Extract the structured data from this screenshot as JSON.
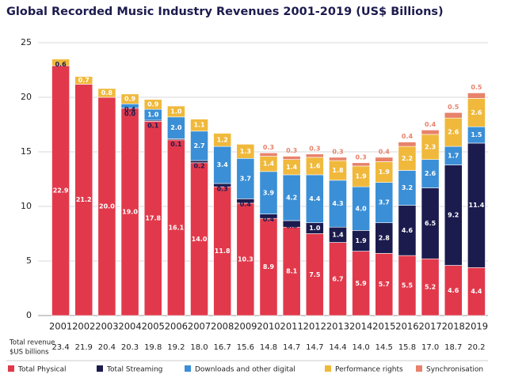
{
  "chart_data": {
    "type": "stacked_bar",
    "title": "Global Recorded Music Industry Revenues 2001-2019 (US$ Billions)",
    "categories": [
      "2001",
      "2002",
      "2003",
      "2004",
      "2005",
      "2006",
      "2007",
      "2008",
      "2009",
      "2010",
      "2011",
      "2012",
      "2013",
      "2014",
      "2015",
      "2016",
      "2017",
      "2018",
      "2019"
    ],
    "series": [
      {
        "name": "Total Physical",
        "color": "#e1394b",
        "values": [
          22.9,
          21.2,
          20.0,
          19.0,
          17.8,
          16.1,
          14.0,
          11.8,
          10.3,
          8.9,
          8.1,
          7.5,
          6.7,
          5.9,
          5.7,
          5.5,
          5.2,
          4.6,
          4.4
        ],
        "value_labels": [
          "22.9",
          "21.2",
          "20.0",
          "19.0",
          "17.8",
          "16.1",
          "14.0",
          "11.8",
          "10.3",
          "8.9",
          "8.1",
          "7.5",
          "6.7",
          "5.9",
          "5.7",
          "5.5",
          "5.2",
          "4.6",
          "4.4"
        ]
      },
      {
        "name": "Total Streaming",
        "color": "#1c1b4e",
        "values": [
          null,
          null,
          null,
          0.0,
          0.1,
          0.1,
          0.2,
          0.3,
          0.4,
          0.4,
          0.6,
          1.0,
          1.4,
          1.9,
          2.8,
          4.6,
          6.5,
          9.2,
          11.4
        ],
        "value_labels": [
          null,
          null,
          null,
          "0.0",
          "0.1",
          "0.1",
          "0.2",
          "0.3",
          "0.4",
          "0.4",
          "0.6",
          "1.0",
          "1.4",
          "1.9",
          "2.8",
          "4.6",
          "6.5",
          "9.2",
          "11.4"
        ]
      },
      {
        "name": "Downloads and other digital",
        "color": "#3b8fd6",
        "values": [
          null,
          null,
          null,
          0.4,
          1.0,
          2.0,
          2.7,
          3.4,
          3.7,
          3.9,
          4.2,
          4.4,
          4.3,
          4.0,
          3.7,
          3.2,
          2.6,
          1.7,
          1.5
        ],
        "value_labels": [
          null,
          null,
          null,
          "0.4",
          "1.0",
          "2.0",
          "2.7",
          "3.4",
          "3.7",
          "3.9",
          "4.2",
          "4.4",
          "4.3",
          "4.0",
          "3.7",
          "3.2",
          "2.6",
          "1.7",
          "1.5"
        ]
      },
      {
        "name": "Performance rights",
        "color": "#f0b93c",
        "values": [
          0.6,
          0.7,
          0.8,
          0.9,
          0.9,
          1.0,
          1.1,
          1.2,
          1.3,
          1.4,
          1.4,
          1.6,
          1.8,
          1.9,
          1.9,
          2.2,
          2.3,
          2.6,
          2.6
        ],
        "value_labels": [
          "0.6",
          "0.7",
          "0.8",
          "0.9",
          "0.9",
          "1.0",
          "1.1",
          "1.2",
          "1.3",
          "1.4",
          "1.4",
          "1.6",
          "1.8",
          "1.9",
          "1.9",
          "2.2",
          "2.3",
          "2.6",
          "2.6"
        ]
      },
      {
        "name": "Synchronisation",
        "color": "#e8826b",
        "values": [
          null,
          null,
          null,
          null,
          null,
          null,
          null,
          null,
          null,
          0.3,
          0.3,
          0.3,
          0.3,
          0.3,
          0.4,
          0.4,
          0.4,
          0.5,
          0.5
        ],
        "value_labels": [
          null,
          null,
          null,
          null,
          null,
          null,
          null,
          null,
          null,
          "0.3",
          "0.3",
          "0.3",
          "0.3",
          "0.3",
          "0.4",
          "0.4",
          "0.4",
          "0.5",
          "0.5"
        ]
      }
    ],
    "ylim": [
      0,
      25
    ],
    "yticks": [
      0,
      5,
      10,
      15,
      20,
      25
    ],
    "grid": true,
    "totals": {
      "label": [
        "Total revenue",
        "$US billions"
      ],
      "values": [
        23.4,
        21.9,
        20.4,
        20.3,
        19.8,
        19.2,
        18.0,
        16.7,
        15.6,
        14.8,
        14.7,
        14.7,
        14.4,
        14.0,
        14.5,
        15.8,
        17.0,
        18.7,
        20.2
      ],
      "value_labels": [
        null,
        null,
        null,
        null,
        null,
        null,
        "18.0",
        null,
        null,
        null,
        null,
        null,
        null,
        "14.0",
        null,
        null,
        "17.0",
        null,
        null
      ]
    },
    "legend": "bottom"
  }
}
